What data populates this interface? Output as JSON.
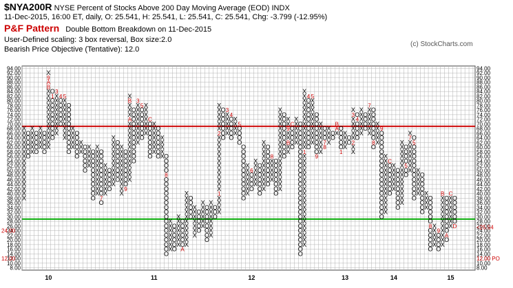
{
  "header": {
    "symbol": "$NYA200R",
    "description": "NYSE Percent of Stocks Above 200 Day Moving Average (EOD)",
    "exchange": "INDX",
    "quote_line": "11-Dec-2015, 16:00 ET, daily, O: 25.541, H: 25.541, L: 25.541, C: 25.541, Chg: -3.799 (-12.95%)",
    "pattern_label": "P&F Pattern",
    "pattern_text": "Double Bottom Breakdown on 11-Dec-2015",
    "scaling_line": "User-Defined scaling: 3 box reversal, Box size:2.0",
    "objective_line": "Bearish Price Objective (Tentative): 12.0",
    "watermark": "(c) StockCharts.com"
  },
  "colors": {
    "x_mark": "#000000",
    "o_mark": "#000000",
    "month_marker": "#cc0000",
    "resistance_line": "#cc0000",
    "support_line": "#00aa00",
    "grid": "#b0b0b0",
    "last_price": "#cc0000"
  },
  "chart_data": {
    "type": "point-and-figure",
    "box_size": 2.0,
    "reversal": 3,
    "y_ticks_left": [
      "94.00",
      "92.00",
      "90.00",
      "88.00",
      "86.00",
      "84.00",
      "82.00",
      "80.00",
      "78.00",
      "76.00",
      "74.00",
      "72.00",
      "70.00",
      "68.00",
      "66.00",
      "64.00",
      "62.00",
      "60.00",
      "58.00",
      "56.00",
      "54.00",
      "52.00",
      "50.00",
      "48.00",
      "46.00",
      "44.00",
      "42.00",
      "40.00",
      "38.00",
      "36.00",
      "34.00",
      "32.00",
      "30.00",
      "28.00",
      "26.00",
      "24.00",
      "22.00",
      "20.00",
      "18.00",
      "16.00",
      "14.00",
      "12.00",
      "10.00",
      "8.00"
    ],
    "y_ticks_right": [
      "94.00",
      "92.00",
      "90.00",
      "88.00",
      "86.00",
      "84.00",
      "82.00",
      "80.00",
      "78.00",
      "76.00",
      "74.00",
      "72.00",
      "70.00",
      "68.00",
      "66.00",
      "64.00",
      "62.00",
      "60.00",
      "58.00",
      "56.00",
      "54.00",
      "52.00",
      "50.00",
      "48.00",
      "46.00",
      "44.00",
      "42.00",
      "40.00",
      "38.00",
      "36.00",
      "34.00",
      "32.00",
      "30.00",
      "28.00",
      "26.00",
      "24.00",
      "22.00",
      "20.00",
      "18.00",
      "16.00",
      "14.00",
      "12.00",
      "10.00",
      "8.00"
    ],
    "last_price_label": "<25.54",
    "last_price_left": "24.00",
    "objective_value": "12.00",
    "objective_label": "12.00 PO",
    "resistance_level": 69,
    "support_level": 29,
    "year_labels": [
      {
        "label": "10",
        "column": 6
      },
      {
        "label": "11",
        "column": 32
      },
      {
        "label": "12",
        "column": 56
      },
      {
        "label": "13",
        "column": 79
      },
      {
        "label": "14",
        "column": 91
      },
      {
        "label": "15",
        "column": 105
      }
    ],
    "columns": [
      {
        "t": "X",
        "lo": 38,
        "hi": 68
      },
      {
        "t": "O",
        "lo": 56,
        "hi": 66
      },
      {
        "t": "X",
        "lo": 58,
        "hi": 68
      },
      {
        "t": "O",
        "lo": 58,
        "hi": 66
      },
      {
        "t": "X",
        "lo": 60,
        "hi": 68
      },
      {
        "t": "O",
        "lo": 58,
        "hi": 66
      },
      {
        "t": "X",
        "lo": 60,
        "hi": 92,
        "marks": {
          "90": "9",
          "88": "A",
          "86": "B"
        }
      },
      {
        "t": "O",
        "lo": 64,
        "hi": 84,
        "marks": {
          "82": "1"
        }
      },
      {
        "t": "X",
        "lo": 66,
        "hi": 84,
        "marks": {
          "84": "3"
        }
      },
      {
        "t": "O",
        "lo": 70,
        "hi": 82,
        "marks": {
          "82": "4"
        }
      },
      {
        "t": "X",
        "lo": 64,
        "hi": 82,
        "marks": {
          "82": "5"
        }
      },
      {
        "t": "O",
        "lo": 58,
        "hi": 78
      },
      {
        "t": "X",
        "lo": 60,
        "hi": 68
      },
      {
        "t": "O",
        "lo": 56,
        "hi": 66
      },
      {
        "t": "X",
        "lo": 58,
        "hi": 62
      },
      {
        "t": "O",
        "lo": 50,
        "hi": 60
      },
      {
        "t": "X",
        "lo": 52,
        "hi": 60
      },
      {
        "t": "O",
        "lo": 38,
        "hi": 58,
        "marks": {
          "64": "8",
          "62": "9"
        }
      },
      {
        "t": "X",
        "lo": 40,
        "hi": 60
      },
      {
        "t": "O",
        "lo": 36,
        "hi": 58,
        "marks": {
          "38": "7"
        }
      },
      {
        "t": "X",
        "lo": 40,
        "hi": 52
      },
      {
        "t": "O",
        "lo": 42,
        "hi": 50
      },
      {
        "t": "X",
        "lo": 44,
        "hi": 64
      },
      {
        "t": "O",
        "lo": 46,
        "hi": 62
      },
      {
        "t": "X",
        "lo": 40,
        "hi": 60
      },
      {
        "t": "O",
        "lo": 42,
        "hi": 58,
        "marks": {
          "42": "9"
        }
      },
      {
        "t": "X",
        "lo": 46,
        "hi": 82,
        "marks": {
          "72": "A",
          "80": "B"
        }
      },
      {
        "t": "O",
        "lo": 54,
        "hi": 76
      },
      {
        "t": "X",
        "lo": 62,
        "hi": 80,
        "marks": {
          "80": "3"
        }
      },
      {
        "t": "O",
        "lo": 64,
        "hi": 78,
        "marks": {
          "78": "5"
        }
      },
      {
        "t": "X",
        "lo": 66,
        "hi": 78
      },
      {
        "t": "O",
        "lo": 56,
        "hi": 72,
        "marks": {
          "72": "C"
        }
      },
      {
        "t": "X",
        "lo": 58,
        "hi": 70
      },
      {
        "t": "O",
        "lo": 56,
        "hi": 68
      },
      {
        "t": "X",
        "lo": 56,
        "hi": 64
      },
      {
        "t": "O",
        "lo": 14,
        "hi": 56,
        "marks": {
          "48": "8"
        }
      },
      {
        "t": "X",
        "lo": 16,
        "hi": 28
      },
      {
        "t": "O",
        "lo": 16,
        "hi": 26
      },
      {
        "t": "X",
        "lo": 18,
        "hi": 30
      },
      {
        "t": "O",
        "lo": 16,
        "hi": 28,
        "marks": {
          "16": "A"
        }
      },
      {
        "t": "X",
        "lo": 18,
        "hi": 40
      },
      {
        "t": "O",
        "lo": 30,
        "hi": 38
      },
      {
        "t": "X",
        "lo": 22,
        "hi": 34
      },
      {
        "t": "O",
        "lo": 24,
        "hi": 32
      },
      {
        "t": "X",
        "lo": 26,
        "hi": 36
      },
      {
        "t": "O",
        "lo": 20,
        "hi": 34
      },
      {
        "t": "X",
        "lo": 22,
        "hi": 36
      },
      {
        "t": "O",
        "lo": 30,
        "hi": 34
      },
      {
        "t": "X",
        "lo": 32,
        "hi": 78,
        "marks": {
          "40": "1",
          "66": "2"
        }
      },
      {
        "t": "O",
        "lo": 64,
        "hi": 76
      },
      {
        "t": "X",
        "lo": 66,
        "hi": 76,
        "marks": {
          "76": "3"
        }
      },
      {
        "t": "O",
        "lo": 64,
        "hi": 74,
        "marks": {
          "74": "4"
        }
      },
      {
        "t": "X",
        "lo": 66,
        "hi": 72
      },
      {
        "t": "O",
        "lo": 62,
        "hi": 70,
        "marks": {
          "70": "5"
        }
      },
      {
        "t": "O",
        "lo": 38,
        "hi": 60
      },
      {
        "t": "X",
        "lo": 40,
        "hi": 52
      },
      {
        "t": "O",
        "lo": 42,
        "hi": 50,
        "marks": {
          "50": "6"
        }
      },
      {
        "t": "X",
        "lo": 44,
        "hi": 54
      },
      {
        "t": "O",
        "lo": 40,
        "hi": 52
      },
      {
        "t": "X",
        "lo": 42,
        "hi": 62
      },
      {
        "t": "O",
        "lo": 44,
        "hi": 60
      },
      {
        "t": "X",
        "lo": 46,
        "hi": 56,
        "marks": {
          "56": "8"
        }
      },
      {
        "t": "O",
        "lo": 40,
        "hi": 54
      },
      {
        "t": "X",
        "lo": 42,
        "hi": 76
      },
      {
        "t": "O",
        "lo": 56,
        "hi": 74
      },
      {
        "t": "X",
        "lo": 58,
        "hi": 72,
        "marks": {
          "68": "9",
          "62": "B"
        }
      },
      {
        "t": "O",
        "lo": 60,
        "hi": 70,
        "marks": {
          "70": "C"
        }
      },
      {
        "t": "X",
        "lo": 62,
        "hi": 72
      },
      {
        "t": "O",
        "lo": 14,
        "hi": 70
      },
      {
        "t": "X",
        "lo": 18,
        "hi": 84,
        "marks": {
          "58": "1"
        }
      },
      {
        "t": "O",
        "lo": 60,
        "hi": 82,
        "marks": {
          "82": "4"
        }
      },
      {
        "t": "X",
        "lo": 62,
        "hi": 82,
        "marks": {
          "82": "5"
        }
      },
      {
        "t": "O",
        "lo": 56,
        "hi": 74,
        "marks": {
          "56": "9"
        }
      },
      {
        "t": "X",
        "lo": 58,
        "hi": 70
      },
      {
        "t": "O",
        "lo": 60,
        "hi": 68,
        "marks": {
          "62": "7",
          "60": "8"
        }
      },
      {
        "t": "X",
        "lo": 62,
        "hi": 68
      },
      {
        "t": "O",
        "lo": 64,
        "hi": 66
      },
      {
        "t": "X",
        "lo": 66,
        "hi": 70,
        "marks": {
          "68": "A",
          "70": "B"
        }
      },
      {
        "t": "O",
        "lo": 58,
        "hi": 68,
        "marks": {
          "58": "1"
        }
      },
      {
        "t": "X",
        "lo": 60,
        "hi": 66
      },
      {
        "t": "O",
        "lo": 62,
        "hi": 64
      },
      {
        "t": "X",
        "lo": 58,
        "hi": 76,
        "marks": {
          "62": "2",
          "74": "3"
        }
      },
      {
        "t": "O",
        "lo": 64,
        "hi": 74,
        "marks": {
          "72": "4"
        }
      },
      {
        "t": "X",
        "lo": 66,
        "hi": 76
      },
      {
        "t": "O",
        "lo": 68,
        "hi": 74
      },
      {
        "t": "X",
        "lo": 66,
        "hi": 78,
        "marks": {
          "78": "7"
        }
      },
      {
        "t": "O",
        "lo": 60,
        "hi": 76,
        "marks": {
          "62": "8"
        }
      },
      {
        "t": "X",
        "lo": 62,
        "hi": 70
      },
      {
        "t": "O",
        "lo": 30,
        "hi": 68,
        "marks": {
          "68": "9"
        }
      },
      {
        "t": "X",
        "lo": 32,
        "hi": 56
      },
      {
        "t": "O",
        "lo": 40,
        "hi": 54,
        "marks": {
          "54": "C"
        }
      },
      {
        "t": "X",
        "lo": 42,
        "hi": 52
      },
      {
        "t": "O",
        "lo": 34,
        "hi": 50
      },
      {
        "t": "X",
        "lo": 36,
        "hi": 62
      },
      {
        "t": "O",
        "lo": 48,
        "hi": 60,
        "marks": {
          "52": "5"
        }
      },
      {
        "t": "X",
        "lo": 50,
        "hi": 66,
        "marks": {
          "64": "7"
        }
      },
      {
        "t": "O",
        "lo": 38,
        "hi": 64,
        "marks": {
          "62": "5"
        }
      },
      {
        "t": "X",
        "lo": 40,
        "hi": 50
      },
      {
        "t": "O",
        "lo": 32,
        "hi": 48
      },
      {
        "t": "X",
        "lo": 34,
        "hi": 40
      },
      {
        "t": "O",
        "lo": 16,
        "hi": 38,
        "marks": {
          "26": "8"
        }
      },
      {
        "t": "X",
        "lo": 18,
        "hi": 26
      },
      {
        "t": "O",
        "lo": 16,
        "hi": 24,
        "marks": {
          "24": "9"
        }
      },
      {
        "t": "X",
        "lo": 18,
        "hi": 40,
        "marks": {
          "40": "B"
        }
      },
      {
        "t": "O",
        "lo": 20,
        "hi": 38,
        "marks": {
          "22": "A"
        }
      },
      {
        "t": "X",
        "lo": 26,
        "hi": 40,
        "marks": {
          "40": "C"
        }
      },
      {
        "t": "O",
        "lo": 26,
        "hi": 38,
        "marks": {
          "26": "D"
        }
      }
    ]
  }
}
